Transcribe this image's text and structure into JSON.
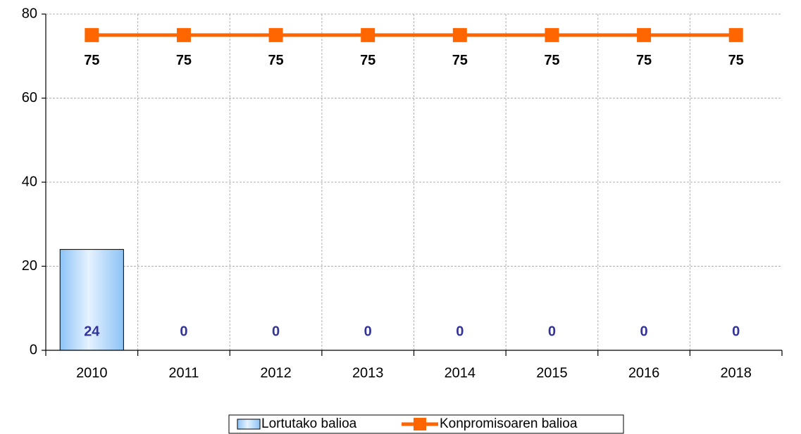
{
  "chart_data": {
    "type": "combo",
    "categories": [
      "2010",
      "2011",
      "2012",
      "2013",
      "2014",
      "2015",
      "2016",
      "2018"
    ],
    "series": [
      {
        "name": "Lortutako balioa",
        "type": "bar",
        "color": "#99ccff",
        "values": [
          24,
          0,
          0,
          0,
          0,
          0,
          0,
          0
        ]
      },
      {
        "name": "Konpromisoaren balioa",
        "type": "line",
        "color": "#ff6600",
        "values": [
          75,
          75,
          75,
          75,
          75,
          75,
          75,
          75
        ]
      }
    ],
    "ylim": [
      0,
      80
    ],
    "yticks": [
      0,
      20,
      40,
      60,
      80
    ],
    "grid": true,
    "legend": "bottom"
  }
}
